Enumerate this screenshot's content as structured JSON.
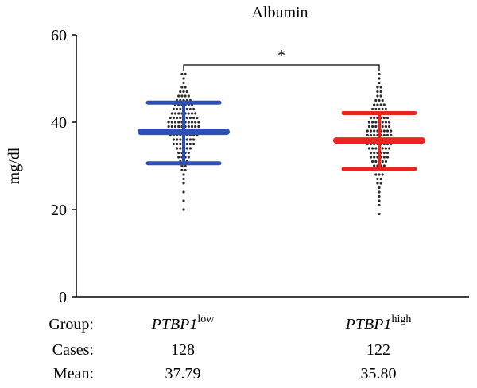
{
  "chart_data": {
    "type": "scatter",
    "title": "Albumin",
    "ylabel": "mg/dl",
    "xlabel": "",
    "ylim": [
      0,
      60
    ],
    "yticks": [
      0,
      20,
      40,
      60
    ],
    "grid": false,
    "significance": "*",
    "groups": [
      {
        "name": "PTBP1",
        "sup": "low",
        "cases": "128",
        "mean_label": "37.79",
        "color": "#2f4fb8",
        "mean": 37.79,
        "sd_upper": 44.5,
        "sd_lower": 30.6,
        "points": [
          20,
          22,
          24,
          26,
          27,
          28,
          29,
          29,
          30,
          30,
          31,
          31,
          31,
          32,
          32,
          32,
          32,
          33,
          33,
          33,
          33,
          34,
          34,
          34,
          34,
          34,
          35,
          35,
          35,
          35,
          35,
          35,
          35,
          36,
          36,
          36,
          36,
          36,
          36,
          36,
          37,
          37,
          37,
          37,
          37,
          37,
          37,
          37,
          37,
          38,
          38,
          38,
          38,
          38,
          38,
          38,
          38,
          38,
          38,
          38,
          39,
          39,
          39,
          39,
          39,
          39,
          39,
          39,
          39,
          39,
          40,
          40,
          40,
          40,
          40,
          40,
          40,
          40,
          40,
          40,
          41,
          41,
          41,
          41,
          41,
          41,
          41,
          41,
          41,
          42,
          42,
          42,
          42,
          42,
          42,
          42,
          42,
          43,
          43,
          43,
          43,
          43,
          43,
          43,
          44,
          44,
          44,
          44,
          44,
          44,
          45,
          45,
          45,
          45,
          45,
          46,
          46,
          46,
          46,
          47,
          47,
          47,
          48,
          48,
          49,
          50,
          51,
          51
        ]
      },
      {
        "name": "PTBP1",
        "sup": "high",
        "cases": "122",
        "mean_label": "35.80",
        "color": "#e8251f",
        "mean": 35.8,
        "sd_upper": 42.1,
        "sd_lower": 29.3,
        "points": [
          19,
          21,
          22,
          23,
          24,
          25,
          26,
          26,
          27,
          27,
          28,
          28,
          28,
          29,
          29,
          29,
          30,
          30,
          30,
          30,
          31,
          31,
          31,
          31,
          31,
          32,
          32,
          32,
          32,
          32,
          32,
          33,
          33,
          33,
          33,
          33,
          33,
          34,
          34,
          34,
          34,
          34,
          34,
          34,
          35,
          35,
          35,
          35,
          35,
          35,
          35,
          35,
          36,
          36,
          36,
          36,
          36,
          36,
          36,
          36,
          37,
          37,
          37,
          37,
          37,
          37,
          37,
          37,
          38,
          38,
          38,
          38,
          38,
          38,
          38,
          38,
          39,
          39,
          39,
          39,
          39,
          39,
          39,
          40,
          40,
          40,
          40,
          40,
          40,
          40,
          41,
          41,
          41,
          41,
          41,
          41,
          42,
          42,
          42,
          42,
          42,
          43,
          43,
          43,
          43,
          43,
          44,
          44,
          44,
          44,
          45,
          45,
          45,
          46,
          46,
          47,
          47,
          48,
          48,
          49,
          50,
          51
        ]
      }
    ]
  },
  "table": {
    "group_label": "Group:",
    "cases_label": "Cases:",
    "mean_label": "Mean:"
  }
}
